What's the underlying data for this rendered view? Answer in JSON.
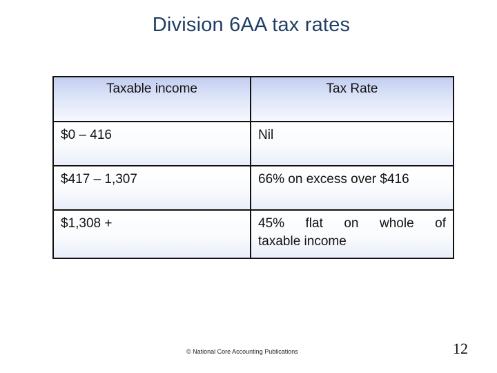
{
  "title": "Division 6AA tax rates",
  "table": {
    "headers": [
      "Taxable income",
      "Tax Rate"
    ],
    "rows": [
      [
        "$0 – 416",
        "Nil"
      ],
      [
        "$417 – 1,307",
        "66% on excess over $416"
      ],
      [
        "$1,308 +",
        "45% flat on whole of taxable income"
      ]
    ],
    "row3_line1": "45% flat on whole of",
    "row3_line2": "taxable income"
  },
  "footer": "©  National Core Accounting Publications",
  "page_number": "12"
}
